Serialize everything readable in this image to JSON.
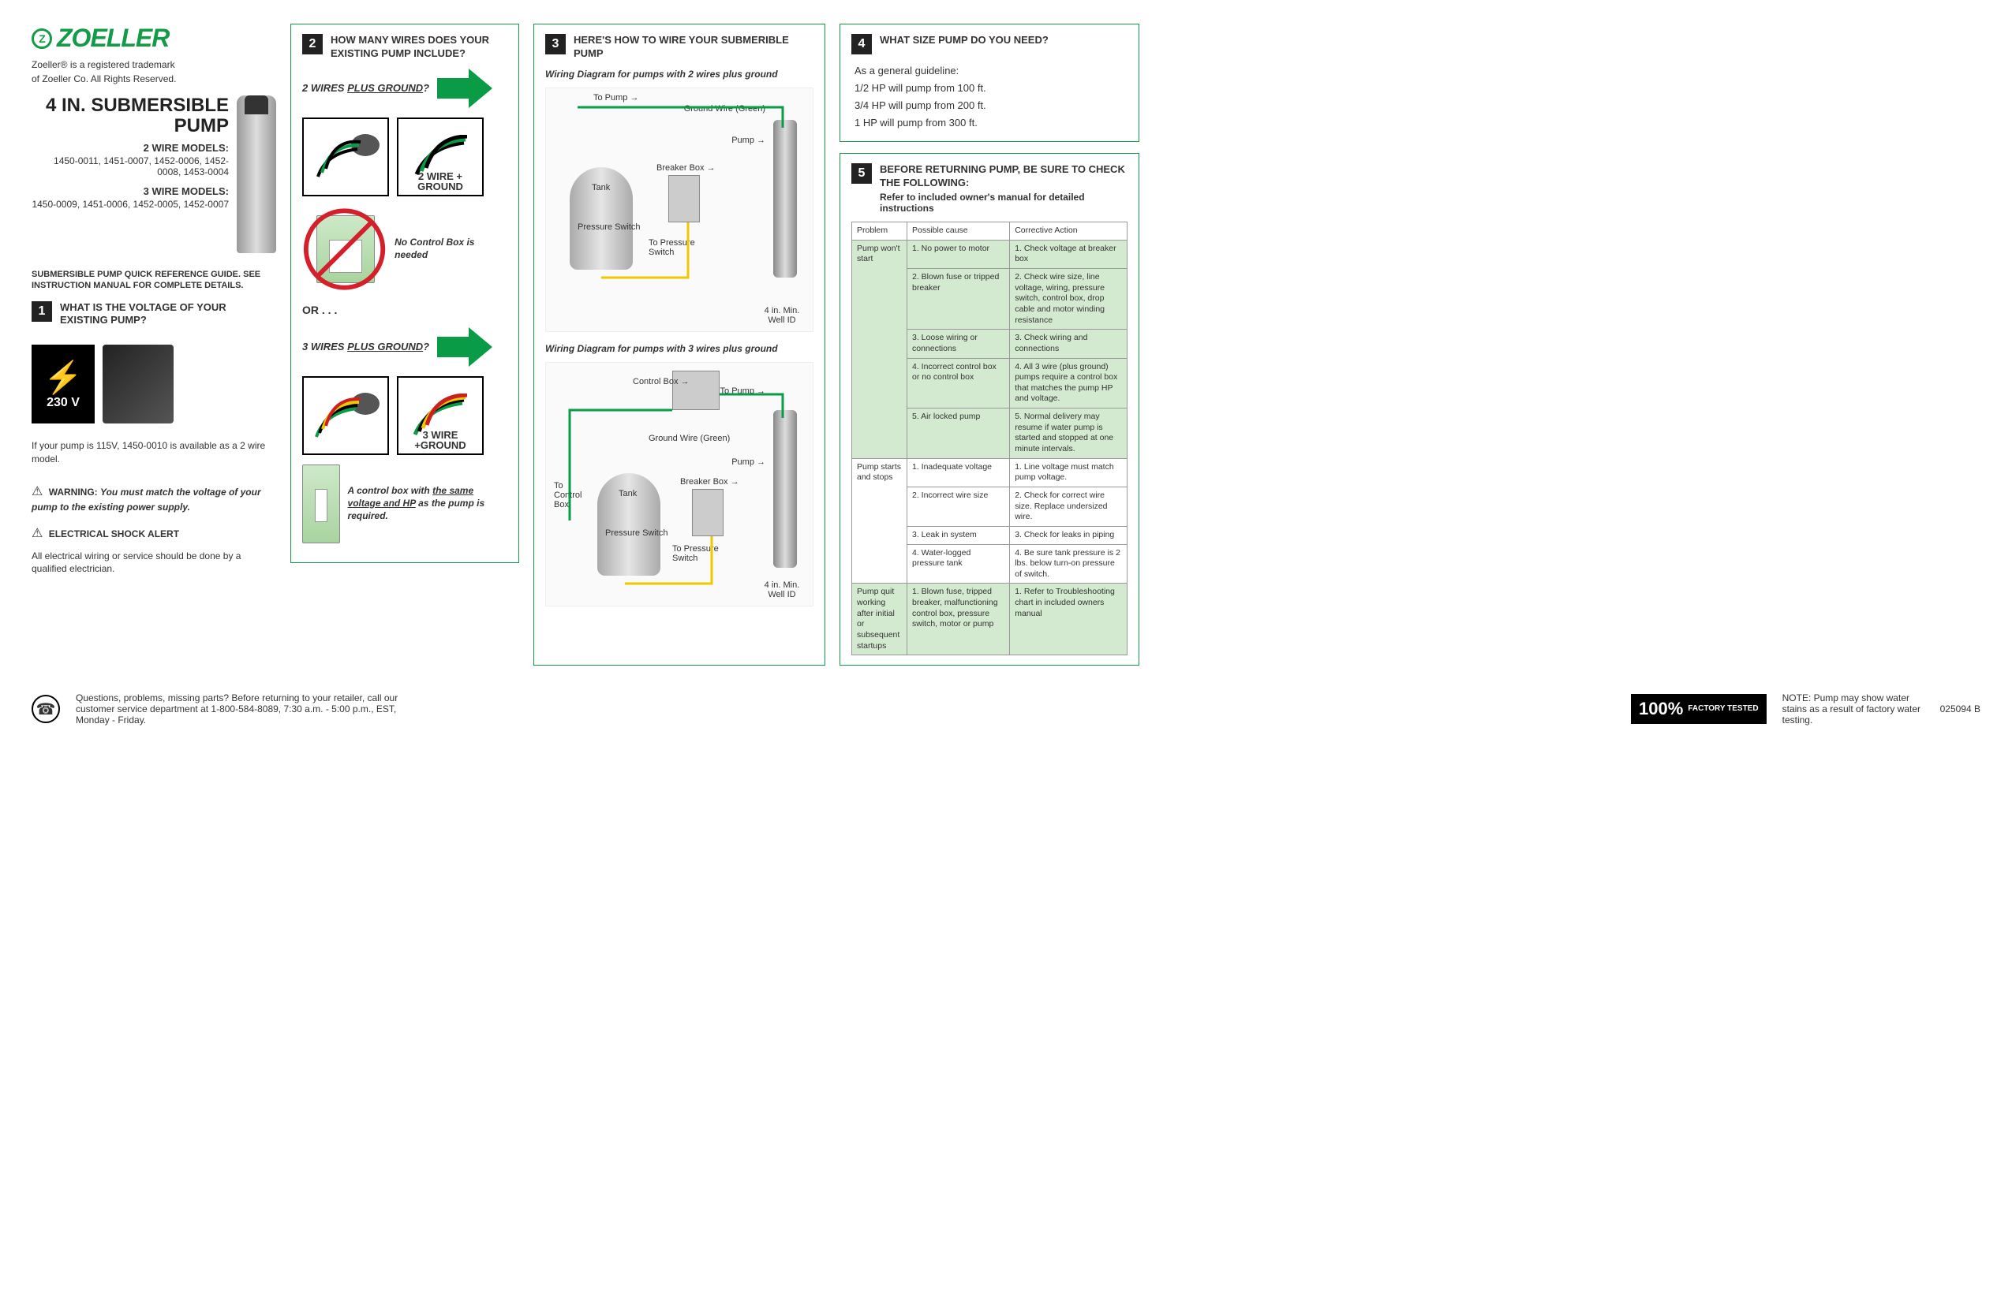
{
  "brand": {
    "name": "ZOELLER",
    "trademark_line1": "Zoeller® is a registered trademark",
    "trademark_line2": "of Zoeller Co. All Rights Reserved."
  },
  "product": {
    "title": "4 IN. SUBMERSIBLE PUMP",
    "two_wire_label": "2 WIRE MODELS:",
    "two_wire_models": "1450-0011, 1451-0007, 1452-0006, 1452-0008, 1453-0004",
    "three_wire_label": "3 WIRE MODELS:",
    "three_wire_models": "1450-0009, 1451-0006, 1452-0005, 1452-0007"
  },
  "guide_note": "SUBMERSIBLE PUMP QUICK REFERENCE GUIDE. SEE INSTRUCTION MANUAL FOR COMPLETE DETAILS.",
  "step1": {
    "num": "1",
    "title": "WHAT IS THE VOLTAGE OF YOUR EXISTING PUMP?",
    "voltage": "230 V",
    "note": "If your pump is 115V, 1450-0010 is available as a 2 wire model.",
    "warning_label": "WARNING:",
    "warning_text": "You must match the voltage of your pump to the existing power supply.",
    "shock_label": "ELECTRICAL SHOCK ALERT",
    "shock_text": "All electrical wiring or service should be done by a qualified electrician."
  },
  "step2": {
    "num": "2",
    "title": "HOW MANY WIRES DOES YOUR EXISTING PUMP INCLUDE?",
    "q2wire": "2 WIRES PLUS GROUND?",
    "label2wire": "2 WIRE + GROUND",
    "no_control": "No Control Box is needed",
    "or": "OR . . .",
    "q3wire": "3 WIRES PLUS GROUND?",
    "label3wire": "3 WIRE +GROUND",
    "control_req": "A control box with the same voltage and HP as the pump is required."
  },
  "step3": {
    "num": "3",
    "title": "HERE'S HOW TO WIRE YOUR SUBMERIBLE PUMP",
    "cap2": "Wiring Diagram for pumps with 2 wires plus ground",
    "cap3": "Wiring Diagram for pumps with 3 wires plus ground",
    "labels": {
      "to_pump": "To Pump →",
      "ground": "Ground Wire (Green)",
      "pump": "Pump →",
      "tank": "Tank",
      "breaker": "Breaker Box →",
      "pswitch": "Pressure Switch",
      "to_pswitch": "To Pressure Switch",
      "well": "4 in. Min. Well ID",
      "control": "Control Box →",
      "to_control": "To Control Box"
    }
  },
  "step4": {
    "num": "4",
    "title": "WHAT SIZE PUMP DO YOU NEED?",
    "intro": "As a general guideline:",
    "g1": "1/2 HP will pump from 100 ft.",
    "g2": "3/4 HP will pump from 200 ft.",
    "g3": "1 HP will pump from 300 ft."
  },
  "step5": {
    "num": "5",
    "title": "BEFORE RETURNING PUMP, BE SURE TO CHECK THE FOLLOWING:",
    "sub": "Refer to included owner's manual for detailed instructions",
    "headers": {
      "p": "Problem",
      "c": "Possible cause",
      "a": "Corrective Action"
    },
    "rows": [
      {
        "p": "Pump won't start",
        "c": "1. No power to motor",
        "a": "1. Check voltage at breaker box",
        "alt": true
      },
      {
        "p": "",
        "c": "2. Blown fuse or tripped breaker",
        "a": "2. Check wire size, line voltage, wiring, pressure switch, control box, drop cable and motor winding resistance",
        "alt": true
      },
      {
        "p": "",
        "c": "3. Loose wiring or connections",
        "a": "3. Check wiring and connections",
        "alt": true
      },
      {
        "p": "",
        "c": "4. Incorrect control box or no control box",
        "a": "4. All 3 wire (plus ground) pumps require a control box that matches the pump HP and voltage.",
        "alt": true
      },
      {
        "p": "",
        "c": "5. Air locked pump",
        "a": "5. Normal delivery may resume if water pump is started and stopped at one minute intervals.",
        "alt": true
      },
      {
        "p": "Pump starts and stops",
        "c": "1. Inadequate voltage",
        "a": "1. Line voltage must match pump voltage.",
        "alt": false
      },
      {
        "p": "",
        "c": "2. Incorrect wire size",
        "a": "2. Check for correct wire size. Replace undersized wire.",
        "alt": false
      },
      {
        "p": "",
        "c": "3. Leak in system",
        "a": "3. Check for leaks in piping",
        "alt": false
      },
      {
        "p": "",
        "c": "4. Water-logged pressure tank",
        "a": "4. Be sure tank pressure is 2 lbs. below turn-on pressure of switch.",
        "alt": false
      },
      {
        "p": "Pump quit working after initial or subsequent startups",
        "c": "1. Blown fuse, tripped breaker, malfunctioning control box, pressure switch, motor or pump",
        "a": "1. Refer to Troubleshooting chart in included owners manual",
        "alt": true
      }
    ]
  },
  "footer": {
    "q": "Questions, problems, missing parts? Before returning to your retailer, call our customer service department at 1-800-584-8089, 7:30 a.m. - 5:00 p.m., EST, Monday - Friday.",
    "pct": "100%",
    "ft": "FACTORY TESTED",
    "note": "NOTE: Pump may show water stains as a result of factory water testing.",
    "code": "025094 B"
  },
  "colors": {
    "green": "#149b48",
    "arrow": "#0a9b47"
  }
}
